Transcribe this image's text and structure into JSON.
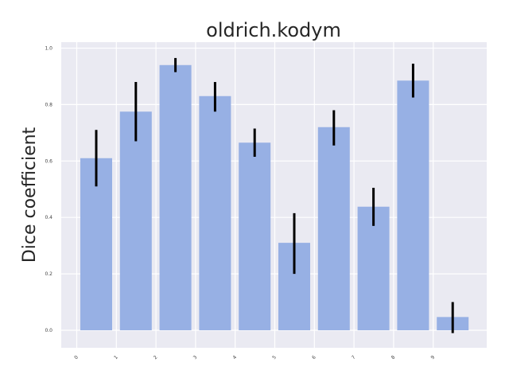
{
  "chart_data": {
    "type": "bar",
    "title": "oldrich.kodym",
    "xlabel": "",
    "ylabel": "Dice coefficient",
    "categories": [
      "0",
      "1",
      "2",
      "3",
      "4",
      "5",
      "6",
      "7",
      "8",
      "9"
    ],
    "values": [
      0.61,
      0.775,
      0.94,
      0.83,
      0.665,
      0.31,
      0.72,
      0.438,
      0.885,
      0.047
    ],
    "error_low": [
      0.51,
      0.67,
      0.915,
      0.775,
      0.615,
      0.2,
      0.655,
      0.37,
      0.825,
      -0.01
    ],
    "error_high": [
      0.71,
      0.88,
      0.965,
      0.88,
      0.715,
      0.415,
      0.78,
      0.505,
      0.945,
      0.1
    ],
    "yticks": [
      "0.0",
      "0.2",
      "0.4",
      "0.6",
      "0.8",
      "1.0"
    ],
    "ylim": [
      -0.06,
      1.02
    ],
    "grid": true,
    "style": "seaborn-darkgrid",
    "colors": {
      "bar": "#97b0e4",
      "error": "#000000",
      "plot_background": "#eaeaf2",
      "grid": "#ffffff"
    }
  }
}
